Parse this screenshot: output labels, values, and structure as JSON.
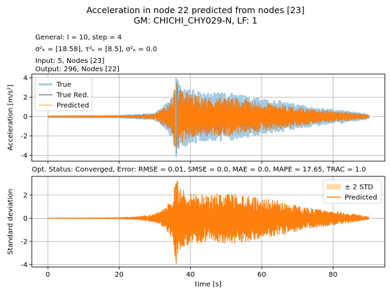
{
  "figure": {
    "title_line1": "Acceleration in node 22 predicted from nodes [23]",
    "title_line2": "GM: CHICHI_CHY029-N, LF: 1",
    "info_general": "General: l = 10, step = 4",
    "info_sigma": "σ²ₖ = [18.58], τ²ₖ = [8.5], σ²ₑ = 0.0",
    "info_input": "Input: 5, Nodes [23]",
    "info_output": "Output: 296, Nodes [22]",
    "status": "Opt. Status: Converged, Error: RMSE = 0.01, SMSE = 0.0, MAE = 0.0, MAPE = 17.65, TRAC = 1.0"
  },
  "colors": {
    "true": "#a6cbe3",
    "true_red": "#8c8c8c",
    "predicted": "#ff7f0e",
    "predicted_thin": "#e8a33b",
    "std_fill": "#ffdca8",
    "grid": "#b0b0b0"
  },
  "chart_data": [
    {
      "type": "line",
      "ylabel": "Acceleration [m/s²]",
      "xlabel": "",
      "xlim": [
        -4.5,
        94.5
      ],
      "ylim": [
        -4.6,
        4.4
      ],
      "xticks": [
        0,
        20,
        40,
        60,
        80
      ],
      "yticks": [
        -4,
        -2,
        0,
        2,
        4
      ],
      "grid": true,
      "legend": "top-left",
      "series": [
        {
          "name": "True",
          "x": [
            0,
            10,
            20,
            30,
            33,
            35,
            36,
            37,
            40,
            45,
            50,
            55,
            60,
            65,
            70,
            75,
            80,
            85,
            90
          ],
          "envelope": [
            0.02,
            0.05,
            0.08,
            0.3,
            1.2,
            2.4,
            4.1,
            3.3,
            2.8,
            2.4,
            2.5,
            2.2,
            1.8,
            1.6,
            1.2,
            0.9,
            0.7,
            0.5,
            0.2
          ]
        },
        {
          "name": "True Red.",
          "x": [
            0,
            10,
            20,
            30,
            33,
            35,
            36,
            37,
            40,
            45,
            50,
            55,
            60,
            65,
            70,
            75,
            80,
            85,
            90
          ],
          "envelope": [
            0.02,
            0.04,
            0.06,
            0.25,
            1.0,
            2.0,
            3.7,
            2.9,
            2.3,
            2.0,
            2.0,
            1.8,
            1.5,
            1.3,
            1.0,
            0.7,
            0.55,
            0.4,
            0.15
          ]
        },
        {
          "name": "Predicted",
          "x": [
            0,
            10,
            20,
            30,
            33,
            35,
            36,
            37,
            40,
            45,
            50,
            55,
            60,
            65,
            70,
            75,
            80,
            85,
            90
          ],
          "envelope": [
            0.02,
            0.04,
            0.06,
            0.25,
            1.0,
            2.0,
            3.7,
            2.9,
            2.3,
            2.0,
            2.0,
            1.8,
            1.5,
            1.3,
            1.0,
            0.7,
            0.55,
            0.4,
            0.15
          ]
        }
      ]
    },
    {
      "type": "area",
      "ylabel": "Standard deviation",
      "xlabel": "time [s]",
      "xlim": [
        -4.5,
        94.5
      ],
      "ylim": [
        -4.2,
        3.6
      ],
      "xticks": [
        0,
        20,
        40,
        60,
        80
      ],
      "yticks": [
        -4,
        -2,
        0,
        2
      ],
      "grid": true,
      "legend": "top-right",
      "series": [
        {
          "name": "± 2 STD",
          "x": [
            0,
            90
          ],
          "values": [
            0.0,
            0.0
          ]
        },
        {
          "name": "Predicted",
          "x": [
            0,
            10,
            20,
            25,
            30,
            33,
            35,
            36,
            37,
            40,
            45,
            50,
            55,
            60,
            65,
            70,
            75,
            80,
            85,
            90
          ],
          "envelope": [
            0.01,
            0.03,
            0.05,
            0.12,
            0.35,
            0.9,
            1.8,
            3.9,
            2.7,
            2.3,
            2.0,
            2.2,
            2.1,
            1.7,
            1.5,
            1.1,
            0.8,
            0.6,
            0.4,
            0.1
          ]
        }
      ]
    }
  ]
}
